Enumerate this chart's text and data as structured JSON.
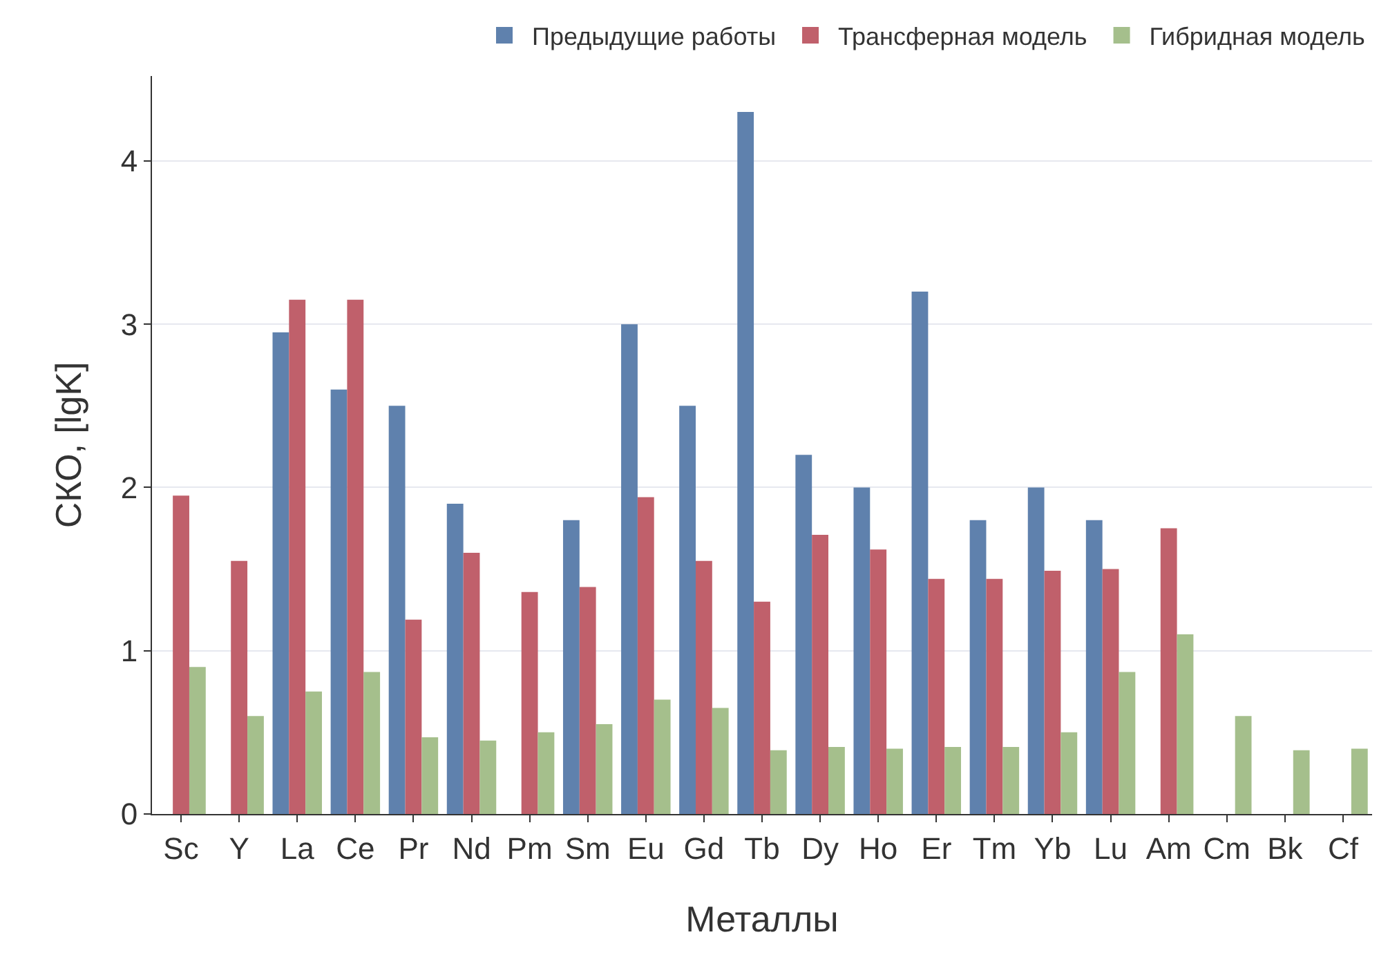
{
  "chart_data": {
    "type": "bar",
    "xlabel": "Металлы",
    "ylabel": "СКО, [lgK]",
    "categories": [
      "Sc",
      "Y",
      "La",
      "Ce",
      "Pr",
      "Nd",
      "Pm",
      "Sm",
      "Eu",
      "Gd",
      "Tb",
      "Dy",
      "Ho",
      "Er",
      "Tm",
      "Yb",
      "Lu",
      "Am",
      "Cm",
      "Bk",
      "Cf"
    ],
    "series": [
      {
        "name": "Предыдущие работы",
        "color": "#5f81ad",
        "values": [
          null,
          null,
          2.95,
          2.6,
          2.5,
          1.9,
          null,
          1.8,
          3.0,
          2.5,
          4.3,
          2.2,
          2.0,
          3.2,
          1.8,
          2.0,
          1.8,
          null,
          null,
          null,
          null
        ]
      },
      {
        "name": "Трансферная модель",
        "color": "#c0606b",
        "values": [
          1.95,
          1.55,
          3.15,
          3.15,
          1.19,
          1.6,
          1.36,
          1.39,
          1.94,
          1.55,
          1.3,
          1.71,
          1.62,
          1.44,
          1.44,
          1.49,
          1.5,
          1.75,
          null,
          null,
          null
        ]
      },
      {
        "name": "Гибридная модель",
        "color": "#a5bf8c",
        "values": [
          0.9,
          0.6,
          0.75,
          0.87,
          0.47,
          0.45,
          0.5,
          0.55,
          0.7,
          0.65,
          0.39,
          0.41,
          0.4,
          0.41,
          0.41,
          0.5,
          0.87,
          1.1,
          0.6,
          0.39,
          0.4
        ]
      }
    ],
    "ylim": [
      0,
      4.52
    ],
    "yticks": [
      0,
      1,
      2,
      3,
      4
    ],
    "grid": "y",
    "legend": "top"
  }
}
